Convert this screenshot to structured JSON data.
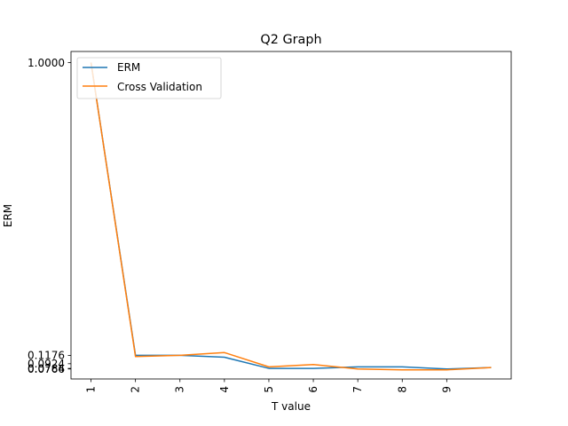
{
  "chart_data": {
    "type": "line",
    "title": "Q2 Graph",
    "xlabel": "T value",
    "ylabel": "ERM",
    "x": [
      1,
      2,
      3,
      4,
      5,
      6,
      7,
      8,
      9,
      10
    ],
    "xticks": [
      1,
      2,
      3,
      4,
      5,
      6,
      7,
      8,
      9
    ],
    "xtick_labels": [
      "1",
      "2",
      "3",
      "4",
      "5",
      "6",
      "7",
      "8",
      "9"
    ],
    "yticks": [
      1.0,
      0.1176,
      0.0924,
      0.0784,
      0.0766
    ],
    "ytick_labels": [
      "1.0000",
      "0.1176",
      "0.0924",
      "0.0784",
      "0.0766"
    ],
    "ylim": [
      0.0465,
      1.0335
    ],
    "xlim": [
      0.55,
      10.45
    ],
    "legend_position": "upper-left",
    "grid": false,
    "series": [
      {
        "name": "ERM",
        "color": "#1f77b4",
        "values": [
          1.0,
          0.1176,
          0.1176,
          0.112,
          0.0784,
          0.0784,
          0.083,
          0.083,
          0.0766,
          0.081
        ]
      },
      {
        "name": "Cross Validation",
        "color": "#ff7f0e",
        "values": [
          1.0,
          0.114,
          0.1176,
          0.126,
          0.083,
          0.09,
          0.0766,
          0.074,
          0.074,
          0.081
        ]
      }
    ]
  }
}
